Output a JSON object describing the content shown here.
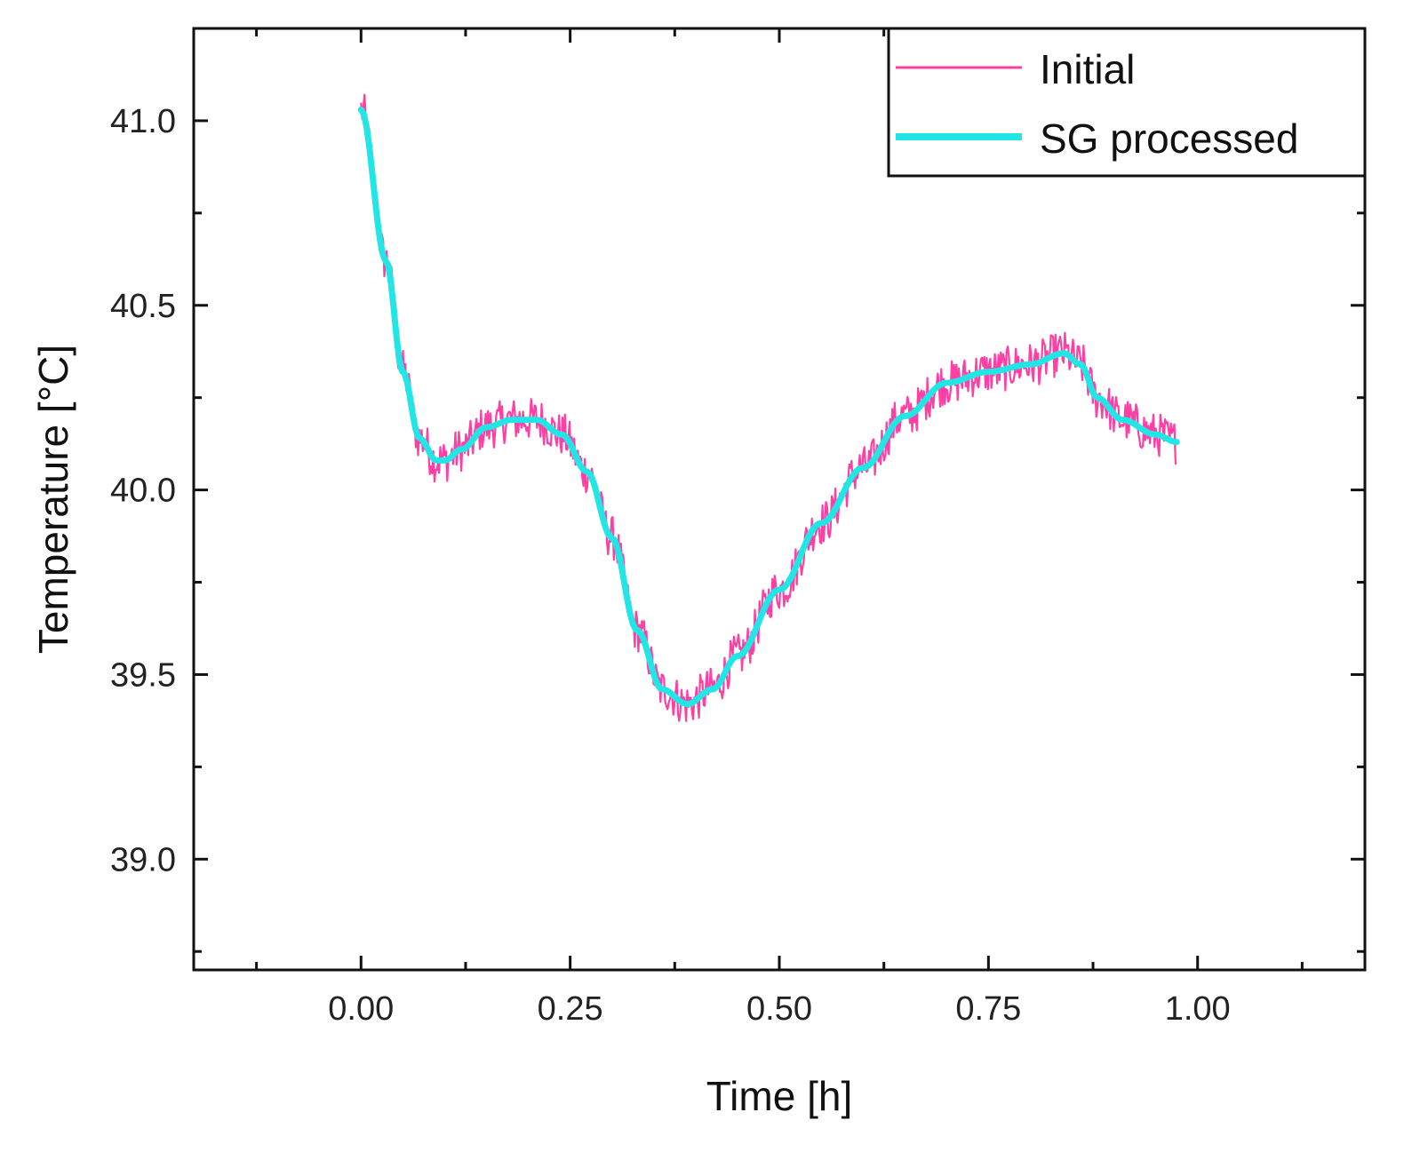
{
  "chart_data": {
    "type": "line",
    "xlabel": "Time [h]",
    "ylabel": "Temperature [°C]",
    "xlim": [
      -0.2,
      1.2
    ],
    "ylim": [
      38.7,
      41.25
    ],
    "x_ticks": [
      0.0,
      0.25,
      0.5,
      0.75,
      1.0
    ],
    "x_tick_labels": [
      "0.00",
      "0.25",
      "0.50",
      "0.75",
      "1.00"
    ],
    "y_ticks": [
      39.0,
      39.5,
      40.0,
      40.5,
      41.0
    ],
    "y_tick_labels": [
      "39.0",
      "39.5",
      "40.0",
      "40.5",
      "41.0"
    ],
    "legend": {
      "position": "top-right"
    },
    "series": [
      {
        "name": "Initial",
        "color": "#ff3fa4",
        "style": "noisy",
        "noise_amplitude": 0.06,
        "x": [
          0.0,
          0.03,
          0.05,
          0.07,
          0.09,
          0.1,
          0.12,
          0.15,
          0.18,
          0.21,
          0.24,
          0.27,
          0.3,
          0.33,
          0.36,
          0.39,
          0.42,
          0.45,
          0.5,
          0.55,
          0.6,
          0.65,
          0.7,
          0.75,
          0.8,
          0.84,
          0.86,
          0.88,
          0.91,
          0.95,
          0.975
        ],
        "y": [
          41.03,
          40.62,
          40.32,
          40.14,
          40.08,
          40.08,
          40.11,
          40.17,
          40.19,
          40.19,
          40.15,
          40.05,
          39.87,
          39.62,
          39.46,
          39.42,
          39.46,
          39.55,
          39.73,
          39.91,
          40.06,
          40.2,
          40.29,
          40.32,
          40.34,
          40.37,
          40.34,
          40.25,
          40.19,
          40.15,
          40.13
        ]
      },
      {
        "name": "SG processed",
        "color": "#22e6e6",
        "style": "smooth",
        "x": [
          0.0,
          0.03,
          0.05,
          0.07,
          0.09,
          0.1,
          0.12,
          0.15,
          0.18,
          0.21,
          0.24,
          0.27,
          0.3,
          0.33,
          0.36,
          0.39,
          0.42,
          0.45,
          0.5,
          0.55,
          0.6,
          0.65,
          0.7,
          0.75,
          0.8,
          0.84,
          0.86,
          0.88,
          0.91,
          0.95,
          0.975
        ],
        "y": [
          41.03,
          40.62,
          40.32,
          40.14,
          40.08,
          40.08,
          40.11,
          40.17,
          40.19,
          40.19,
          40.15,
          40.05,
          39.87,
          39.62,
          39.46,
          39.42,
          39.46,
          39.55,
          39.73,
          39.91,
          40.06,
          40.2,
          40.29,
          40.32,
          40.34,
          40.37,
          40.34,
          40.25,
          40.19,
          40.15,
          40.13
        ]
      }
    ]
  }
}
